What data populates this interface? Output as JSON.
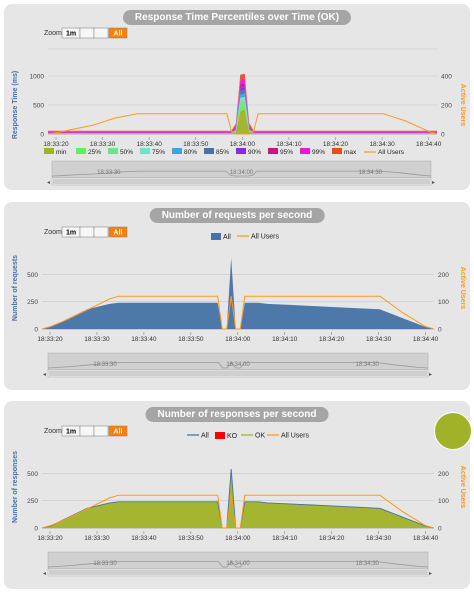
{
  "zoom": {
    "label": "Zoom",
    "buttons": [
      "1m",
      "All"
    ],
    "selected": "All"
  },
  "colors": {
    "users": "#ff9916",
    "req_fill": "#4572a7",
    "resp_fill": "#a0b228",
    "resp_line": "#4572a7",
    "ko": "#ff0000",
    "nav_fill": "#d0d0d0"
  },
  "chart_data": [
    {
      "type": "area",
      "title": "Response Time Percentiles over Time (OK)",
      "ylabel": "Response Time (ms)",
      "y2label": "Active Users",
      "ylim": [
        0,
        1000
      ],
      "yticks": [
        0,
        500,
        1000
      ],
      "y2lim": [
        0,
        400
      ],
      "y2ticks": [
        0,
        200,
        400
      ],
      "xticks": [
        "18:33:20",
        "18:33:30",
        "18:33:40",
        "18:33:50",
        "18:34:00",
        "18:34:10",
        "18:34:20",
        "18:34:30",
        "18:34:40"
      ],
      "navticks": [
        "18:33:30",
        "18:34:00",
        "18:34:30"
      ],
      "legend": [
        "min",
        "25%",
        "50%",
        "75%",
        "80%",
        "85%",
        "90%",
        "95%",
        "99%",
        "max",
        "All Users"
      ],
      "legend_colors": [
        "#a0b228",
        "#5ef35e",
        "#6fe38b",
        "#6fe3c8",
        "#3aa6e0",
        "#4572a7",
        "#8a2be2",
        "#c71585",
        "#f015d0",
        "#e54f1c",
        "#ff9916"
      ],
      "x": [
        0,
        2,
        5,
        10,
        15,
        20,
        25,
        30,
        35,
        38,
        40,
        41,
        42,
        43,
        44,
        45,
        46,
        47,
        48,
        50,
        55,
        60,
        65,
        70,
        75,
        80,
        85,
        87
      ],
      "stack": [
        {
          "name": "min",
          "values": [
            5,
            5,
            5,
            5,
            5,
            5,
            5,
            5,
            5,
            5,
            5,
            5,
            30,
            400,
            420,
            40,
            5,
            5,
            5,
            5,
            5,
            5,
            5,
            5,
            5,
            5,
            5,
            5
          ]
        },
        {
          "name": "25%",
          "values": [
            3,
            3,
            3,
            3,
            3,
            3,
            3,
            3,
            3,
            3,
            3,
            3,
            10,
            80,
            80,
            10,
            3,
            3,
            3,
            3,
            3,
            3,
            3,
            3,
            3,
            3,
            3,
            3
          ]
        },
        {
          "name": "50%",
          "values": [
            3,
            3,
            3,
            3,
            3,
            3,
            3,
            3,
            3,
            3,
            3,
            3,
            10,
            80,
            80,
            10,
            3,
            3,
            3,
            3,
            3,
            3,
            3,
            3,
            3,
            3,
            3,
            3
          ]
        },
        {
          "name": "75%",
          "values": [
            3,
            3,
            3,
            3,
            3,
            3,
            3,
            3,
            3,
            3,
            3,
            3,
            10,
            60,
            60,
            10,
            3,
            3,
            3,
            3,
            3,
            3,
            3,
            3,
            3,
            3,
            3,
            3
          ]
        },
        {
          "name": "80%",
          "values": [
            2,
            2,
            2,
            2,
            2,
            2,
            2,
            2,
            2,
            2,
            2,
            2,
            10,
            60,
            60,
            10,
            2,
            2,
            2,
            2,
            2,
            2,
            2,
            2,
            2,
            2,
            2,
            2
          ]
        },
        {
          "name": "85%",
          "values": [
            2,
            2,
            2,
            2,
            2,
            2,
            2,
            2,
            2,
            2,
            2,
            2,
            10,
            60,
            60,
            10,
            2,
            2,
            2,
            2,
            2,
            2,
            2,
            2,
            2,
            2,
            2,
            2
          ]
        },
        {
          "name": "90%",
          "values": [
            3,
            3,
            3,
            3,
            3,
            3,
            3,
            3,
            3,
            3,
            3,
            3,
            10,
            60,
            60,
            10,
            3,
            3,
            3,
            3,
            3,
            3,
            3,
            3,
            3,
            3,
            3,
            3
          ]
        },
        {
          "name": "95%",
          "values": [
            5,
            5,
            5,
            5,
            5,
            5,
            5,
            5,
            5,
            5,
            5,
            5,
            20,
            60,
            60,
            20,
            5,
            5,
            5,
            5,
            5,
            5,
            5,
            5,
            5,
            5,
            5,
            5
          ]
        },
        {
          "name": "99%",
          "values": [
            10,
            10,
            10,
            10,
            10,
            10,
            10,
            10,
            10,
            10,
            10,
            10,
            30,
            80,
            80,
            30,
            10,
            10,
            10,
            10,
            10,
            10,
            10,
            10,
            10,
            10,
            10,
            10
          ]
        },
        {
          "name": "max",
          "values": [
            20,
            20,
            20,
            20,
            20,
            20,
            20,
            20,
            20,
            20,
            20,
            20,
            40,
            80,
            80,
            40,
            20,
            20,
            20,
            20,
            20,
            20,
            20,
            20,
            20,
            20,
            20,
            20
          ]
        }
      ],
      "users": [
        0,
        10,
        30,
        60,
        110,
        140,
        140,
        140,
        140,
        140,
        140,
        20,
        0,
        0,
        0,
        0,
        20,
        140,
        140,
        140,
        140,
        140,
        140,
        140,
        140,
        90,
        20,
        0
      ]
    },
    {
      "type": "area",
      "title": "Number of requests per second",
      "ylabel": "Number of requests",
      "y2label": "Active Users",
      "ylim": [
        0,
        750
      ],
      "yticks": [
        0,
        250,
        500
      ],
      "y2lim": [
        0,
        300
      ],
      "y2ticks": [
        0,
        100,
        200
      ],
      "xticks": [
        "18:33:20",
        "18:33:30",
        "18:33:40",
        "18:33:50",
        "18:34:00",
        "18:34:10",
        "18:34:20",
        "18:34:30",
        "18:34:40"
      ],
      "navticks": [
        "18:33:30",
        "18:34:00",
        "18:34:30"
      ],
      "legend": [
        "All",
        "All Users"
      ],
      "x": [
        0,
        2,
        5,
        10,
        15,
        17,
        20,
        25,
        30,
        35,
        37,
        39,
        40,
        41,
        42,
        43,
        44,
        45,
        46,
        47,
        48,
        50,
        55,
        60,
        65,
        70,
        75,
        80,
        85,
        87
      ],
      "values": [
        0,
        20,
        80,
        180,
        230,
        240,
        240,
        240,
        240,
        240,
        240,
        240,
        0,
        0,
        650,
        0,
        0,
        240,
        240,
        240,
        240,
        230,
        220,
        210,
        200,
        190,
        180,
        100,
        20,
        0
      ],
      "users": [
        0,
        10,
        30,
        70,
        110,
        120,
        120,
        120,
        120,
        120,
        120,
        120,
        0,
        0,
        120,
        0,
        0,
        120,
        120,
        120,
        120,
        120,
        120,
        120,
        120,
        120,
        120,
        60,
        10,
        0
      ]
    },
    {
      "type": "area",
      "title": "Number of responses per second",
      "ylabel": "Number of responses",
      "y2label": "Active Users",
      "ylim": [
        0,
        750
      ],
      "yticks": [
        0,
        250,
        500
      ],
      "y2lim": [
        0,
        300
      ],
      "y2ticks": [
        0,
        100,
        200
      ],
      "xticks": [
        "18:33:20",
        "18:33:30",
        "18:33:40",
        "18:33:50",
        "18:34:00",
        "18:34:10",
        "18:34:20",
        "18:34:30",
        "18:34:40"
      ],
      "navticks": [
        "18:33:30",
        "18:34:00",
        "18:34:30"
      ],
      "legend": [
        "All",
        "KO",
        "OK",
        "All Users"
      ],
      "x": [
        0,
        2,
        5,
        10,
        15,
        17,
        20,
        25,
        30,
        35,
        37,
        39,
        40,
        41,
        42,
        43,
        44,
        45,
        46,
        47,
        48,
        50,
        55,
        60,
        65,
        70,
        75,
        80,
        85,
        87
      ],
      "values": [
        0,
        20,
        80,
        180,
        230,
        240,
        240,
        240,
        240,
        240,
        240,
        240,
        0,
        0,
        540,
        0,
        0,
        240,
        240,
        240,
        240,
        230,
        220,
        210,
        200,
        190,
        180,
        100,
        20,
        0
      ],
      "users": [
        0,
        10,
        30,
        70,
        110,
        120,
        120,
        120,
        120,
        120,
        120,
        120,
        0,
        0,
        120,
        0,
        0,
        120,
        120,
        120,
        120,
        120,
        120,
        120,
        120,
        120,
        120,
        60,
        10,
        0
      ]
    }
  ]
}
